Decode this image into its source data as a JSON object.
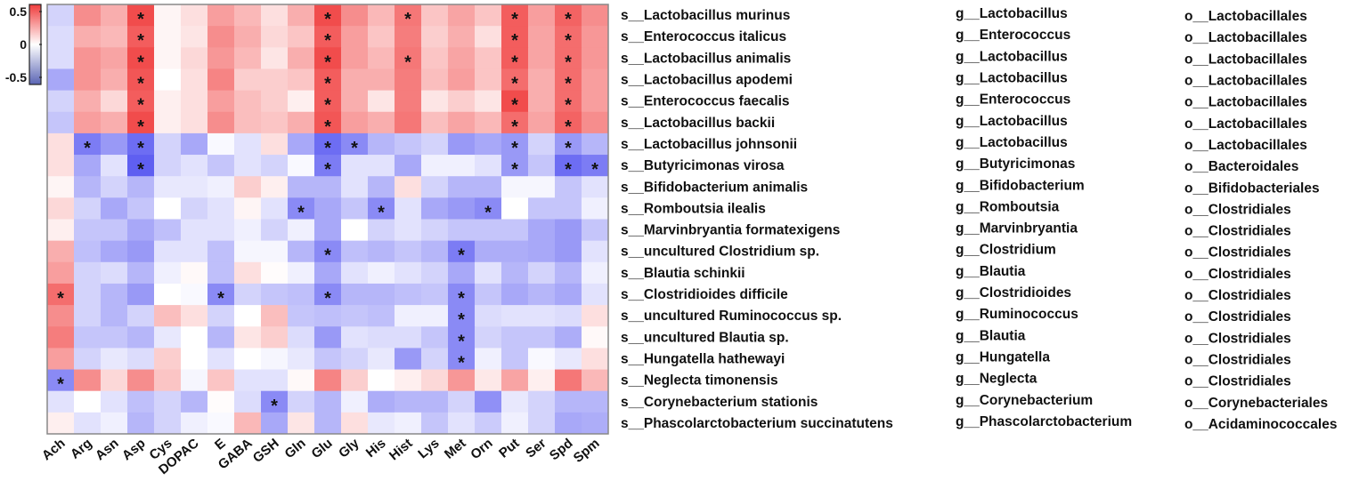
{
  "chart_data": {
    "type": "heatmap",
    "title": "",
    "columns": [
      "Ach",
      "Arg",
      "Asn",
      "Asp",
      "Cys",
      "DOPAC",
      "E",
      "GABA",
      "GSH",
      "Gln",
      "Glu",
      "Gly",
      "His",
      "Hist",
      "Lys",
      "Met",
      "Orn",
      "Put",
      "Ser",
      "Spd",
      "Spm"
    ],
    "rows": [
      {
        "species": "s__Lactobacillus murinus",
        "genus": "g__Lactobacillus",
        "order": "o__Lactobacillales"
      },
      {
        "species": "s__Enterococcus italicus",
        "genus": "g__Enterococcus",
        "order": "o__Lactobacillales"
      },
      {
        "species": "s__Lactobacillus animalis",
        "genus": "g__Lactobacillus",
        "order": "o__Lactobacillales"
      },
      {
        "species": "s__Lactobacillus apodemi",
        "genus": "g__Lactobacillus",
        "order": "o__Lactobacillales"
      },
      {
        "species": "s__Enterococcus faecalis",
        "genus": "g__Enterococcus",
        "order": "o__Lactobacillales"
      },
      {
        "species": "s__Lactobacillus backii",
        "genus": "g__Lactobacillus",
        "order": "o__Lactobacillales"
      },
      {
        "species": "s__Lactobacillus johnsonii",
        "genus": "g__Lactobacillus",
        "order": "o__Lactobacillales"
      },
      {
        "species": "s__Butyricimonas virosa",
        "genus": "g__Butyricimonas",
        "order": "o__Bacteroidales"
      },
      {
        "species": "s__Bifidobacterium animalis",
        "genus": "g__Bifidobacterium",
        "order": "o__Bifidobacteriales"
      },
      {
        "species": "s__Romboutsia ilealis",
        "genus": "g__Romboutsia",
        "order": "o__Clostridiales"
      },
      {
        "species": "s__Marvinbryantia formatexigens",
        "genus": "g__Marvinbryantia",
        "order": "o__Clostridiales"
      },
      {
        "species": "s__uncultured Clostridium sp.",
        "genus": "g__Clostridium",
        "order": "o__Clostridiales"
      },
      {
        "species": "s__Blautia schinkii",
        "genus": "g__Blautia",
        "order": "o__Clostridiales"
      },
      {
        "species": "s__Clostridioides difficile",
        "genus": "g__Clostridioides",
        "order": "o__Clostridiales"
      },
      {
        "species": "s__uncultured Ruminococcus sp.",
        "genus": "g__Ruminococcus",
        "order": "o__Clostridiales"
      },
      {
        "species": "s__uncultured Blautia sp.",
        "genus": "g__Blautia",
        "order": "o__Clostridiales"
      },
      {
        "species": "s__Hungatella hathewayi",
        "genus": "g__Hungatella",
        "order": "o__Clostridiales"
      },
      {
        "species": "s__Neglecta timonensis",
        "genus": "g__Neglecta",
        "order": "o__Clostridiales"
      },
      {
        "species": "s__Corynebacterium stationis",
        "genus": "g__Corynebacterium",
        "order": "o__Corynebacteriales"
      },
      {
        "species": "s__Phascolarctobacterium succinatutens",
        "genus": "g__Phascolarctobacterium",
        "order": "o__Acidaminococcales"
      }
    ],
    "values": [
      [
        -0.15,
        0.35,
        0.25,
        0.55,
        0.03,
        0.1,
        0.3,
        0.22,
        0.1,
        0.25,
        0.55,
        0.35,
        0.22,
        0.42,
        0.18,
        0.28,
        0.18,
        0.5,
        0.3,
        0.48,
        0.35
      ],
      [
        -0.12,
        0.25,
        0.22,
        0.5,
        0.03,
        0.08,
        0.35,
        0.25,
        0.12,
        0.18,
        0.5,
        0.3,
        0.18,
        0.4,
        0.15,
        0.25,
        0.1,
        0.5,
        0.28,
        0.45,
        0.32
      ],
      [
        -0.12,
        0.33,
        0.28,
        0.55,
        0.03,
        0.12,
        0.32,
        0.22,
        0.08,
        0.25,
        0.55,
        0.3,
        0.22,
        0.42,
        0.18,
        0.28,
        0.18,
        0.5,
        0.28,
        0.45,
        0.32
      ],
      [
        -0.3,
        0.33,
        0.25,
        0.52,
        0,
        0.1,
        0.38,
        0.15,
        0.15,
        0.18,
        0.5,
        0.25,
        0.25,
        0.4,
        0.2,
        0.3,
        0.18,
        0.45,
        0.25,
        0.45,
        0.3
      ],
      [
        -0.15,
        0.25,
        0.12,
        0.5,
        0.05,
        0.1,
        0.3,
        0.2,
        0.15,
        0.05,
        0.5,
        0.25,
        0.08,
        0.4,
        0.08,
        0.15,
        0.08,
        0.55,
        0.25,
        0.45,
        0.3
      ],
      [
        -0.2,
        0.3,
        0.25,
        0.55,
        0.05,
        0.1,
        0.35,
        0.2,
        0.18,
        0.25,
        0.52,
        0.3,
        0.25,
        0.42,
        0.2,
        0.28,
        0.22,
        0.45,
        0.28,
        0.48,
        0.35
      ],
      [
        0.1,
        -0.45,
        -0.35,
        -0.5,
        -0.15,
        -0.3,
        -0.02,
        -0.1,
        0.1,
        -0.3,
        -0.5,
        -0.4,
        -0.25,
        -0.2,
        -0.15,
        -0.35,
        -0.3,
        -0.35,
        -0.15,
        -0.35,
        -0.25
      ],
      [
        0.1,
        -0.3,
        -0.1,
        -0.55,
        -0.15,
        -0.1,
        -0.2,
        -0.1,
        -0.15,
        -0.02,
        -0.45,
        -0.1,
        -0.1,
        -0.3,
        -0.05,
        -0.05,
        -0.1,
        -0.35,
        -0.2,
        -0.5,
        -0.45
      ],
      [
        0.03,
        -0.25,
        -0.15,
        -0.25,
        -0.08,
        -0.08,
        -0.05,
        0.15,
        0.05,
        -0.25,
        -0.25,
        -0.1,
        -0.25,
        0.1,
        -0.15,
        -0.25,
        -0.25,
        -0.03,
        -0.03,
        -0.2,
        -0.1
      ],
      [
        0.12,
        -0.15,
        -0.3,
        -0.2,
        0,
        -0.15,
        -0.1,
        0.03,
        -0.1,
        -0.4,
        -0.3,
        -0.2,
        -0.4,
        -0.1,
        -0.3,
        -0.35,
        -0.4,
        0,
        -0.2,
        -0.2,
        -0.05
      ],
      [
        0.05,
        -0.2,
        -0.2,
        -0.3,
        -0.22,
        -0.1,
        -0.1,
        -0.05,
        -0.15,
        -0.05,
        -0.3,
        0,
        -0.15,
        -0.1,
        -0.15,
        -0.2,
        -0.2,
        -0.2,
        -0.3,
        -0.35,
        -0.2
      ],
      [
        0.25,
        -0.22,
        -0.3,
        -0.35,
        -0.1,
        -0.1,
        -0.22,
        -0.03,
        -0.03,
        -0.25,
        -0.4,
        -0.22,
        -0.25,
        -0.2,
        -0.25,
        -0.45,
        -0.28,
        -0.28,
        -0.3,
        -0.35,
        -0.1
      ],
      [
        0.3,
        -0.15,
        -0.12,
        -0.25,
        -0.05,
        0.02,
        -0.22,
        0.1,
        0.01,
        -0.05,
        -0.3,
        -0.1,
        -0.05,
        -0.1,
        -0.15,
        -0.3,
        -0.1,
        -0.25,
        -0.15,
        -0.25,
        -0.05
      ],
      [
        0.45,
        -0.15,
        -0.25,
        -0.35,
        0,
        -0.02,
        -0.4,
        -0.15,
        -0.2,
        -0.22,
        -0.4,
        -0.25,
        -0.25,
        -0.22,
        -0.2,
        -0.4,
        -0.2,
        -0.3,
        -0.25,
        -0.3,
        -0.1
      ],
      [
        0.35,
        -0.15,
        -0.25,
        -0.15,
        0.2,
        0.1,
        -0.15,
        0,
        0.2,
        -0.2,
        -0.22,
        -0.2,
        -0.22,
        -0.05,
        -0.05,
        -0.4,
        -0.12,
        -0.1,
        -0.1,
        -0.12,
        0.1
      ],
      [
        0.4,
        -0.2,
        -0.2,
        -0.25,
        -0.08,
        0,
        -0.25,
        0.08,
        0.15,
        -0.12,
        -0.35,
        -0.1,
        -0.12,
        -0.12,
        -0.2,
        -0.4,
        -0.15,
        -0.2,
        -0.2,
        -0.28,
        0.02
      ],
      [
        0.3,
        -0.15,
        -0.08,
        -0.12,
        0.15,
        0,
        -0.1,
        0,
        -0.03,
        -0.08,
        -0.2,
        -0.15,
        -0.08,
        -0.35,
        -0.15,
        -0.4,
        -0.05,
        -0.2,
        -0.02,
        -0.08,
        0.1
      ],
      [
        -0.4,
        0.35,
        0.12,
        0.35,
        0.18,
        -0.03,
        0.18,
        -0.1,
        -0.1,
        0.02,
        0.38,
        0.15,
        0,
        0.05,
        0.12,
        0.32,
        0.07,
        0.28,
        0.05,
        0.42,
        0.22
      ],
      [
        -0.1,
        0,
        -0.1,
        -0.22,
        -0.15,
        -0.25,
        0.01,
        -0.12,
        -0.4,
        -0.15,
        -0.25,
        -0.05,
        -0.28,
        -0.25,
        -0.25,
        -0.15,
        -0.38,
        -0.08,
        -0.15,
        -0.25,
        -0.25
      ],
      [
        0.05,
        -0.1,
        -0.05,
        -0.25,
        -0.15,
        -0.05,
        -0.02,
        0.22,
        -0.3,
        0.08,
        -0.25,
        0.1,
        -0.08,
        -0.05,
        -0.2,
        -0.1,
        -0.18,
        -0.05,
        -0.15,
        -0.3,
        -0.28
      ]
    ],
    "significance": [
      [
        0,
        0,
        0,
        1,
        0,
        0,
        0,
        0,
        0,
        0,
        1,
        0,
        0,
        1,
        0,
        0,
        0,
        1,
        0,
        1,
        0
      ],
      [
        0,
        0,
        0,
        1,
        0,
        0,
        0,
        0,
        0,
        0,
        1,
        0,
        0,
        0,
        0,
        0,
        0,
        1,
        0,
        1,
        0
      ],
      [
        0,
        0,
        0,
        1,
        0,
        0,
        0,
        0,
        0,
        0,
        1,
        0,
        0,
        1,
        0,
        0,
        0,
        1,
        0,
        1,
        0
      ],
      [
        0,
        0,
        0,
        1,
        0,
        0,
        0,
        0,
        0,
        0,
        1,
        0,
        0,
        0,
        0,
        0,
        0,
        1,
        0,
        1,
        0
      ],
      [
        0,
        0,
        0,
        1,
        0,
        0,
        0,
        0,
        0,
        0,
        1,
        0,
        0,
        0,
        0,
        0,
        0,
        1,
        0,
        1,
        0
      ],
      [
        0,
        0,
        0,
        1,
        0,
        0,
        0,
        0,
        0,
        0,
        1,
        0,
        0,
        0,
        0,
        0,
        0,
        1,
        0,
        1,
        0
      ],
      [
        0,
        1,
        0,
        1,
        0,
        0,
        0,
        0,
        0,
        0,
        1,
        1,
        0,
        0,
        0,
        0,
        0,
        1,
        0,
        1,
        0
      ],
      [
        0,
        0,
        0,
        1,
        0,
        0,
        0,
        0,
        0,
        0,
        1,
        0,
        0,
        0,
        0,
        0,
        0,
        1,
        0,
        1,
        1
      ],
      [
        0,
        0,
        0,
        0,
        0,
        0,
        0,
        0,
        0,
        0,
        0,
        0,
        0,
        0,
        0,
        0,
        0,
        0,
        0,
        0,
        0
      ],
      [
        0,
        0,
        0,
        0,
        0,
        0,
        0,
        0,
        0,
        1,
        0,
        0,
        1,
        0,
        0,
        0,
        1,
        0,
        0,
        0,
        0
      ],
      [
        0,
        0,
        0,
        0,
        0,
        0,
        0,
        0,
        0,
        0,
        0,
        0,
        0,
        0,
        0,
        0,
        0,
        0,
        0,
        0,
        0
      ],
      [
        0,
        0,
        0,
        0,
        0,
        0,
        0,
        0,
        0,
        0,
        1,
        0,
        0,
        0,
        0,
        1,
        0,
        0,
        0,
        0,
        0
      ],
      [
        0,
        0,
        0,
        0,
        0,
        0,
        0,
        0,
        0,
        0,
        0,
        0,
        0,
        0,
        0,
        0,
        0,
        0,
        0,
        0,
        0
      ],
      [
        1,
        0,
        0,
        0,
        0,
        0,
        1,
        0,
        0,
        0,
        1,
        0,
        0,
        0,
        0,
        1,
        0,
        0,
        0,
        0,
        0
      ],
      [
        0,
        0,
        0,
        0,
        0,
        0,
        0,
        0,
        0,
        0,
        0,
        0,
        0,
        0,
        0,
        1,
        0,
        0,
        0,
        0,
        0
      ],
      [
        0,
        0,
        0,
        0,
        0,
        0,
        0,
        0,
        0,
        0,
        0,
        0,
        0,
        0,
        0,
        1,
        0,
        0,
        0,
        0,
        0
      ],
      [
        0,
        0,
        0,
        0,
        0,
        0,
        0,
        0,
        0,
        0,
        0,
        0,
        0,
        0,
        0,
        1,
        0,
        0,
        0,
        0,
        0
      ],
      [
        1,
        0,
        0,
        0,
        0,
        0,
        0,
        0,
        0,
        0,
        0,
        0,
        0,
        0,
        0,
        0,
        0,
        0,
        0,
        0,
        0
      ],
      [
        0,
        0,
        0,
        0,
        0,
        0,
        0,
        0,
        1,
        0,
        0,
        0,
        0,
        0,
        0,
        0,
        0,
        0,
        0,
        0,
        0
      ],
      [
        0,
        0,
        0,
        0,
        0,
        0,
        0,
        0,
        0,
        0,
        0,
        0,
        0,
        0,
        0,
        0,
        0,
        0,
        0,
        0,
        0
      ]
    ],
    "star_symbol": "*",
    "colorbar": {
      "range": [
        -0.6,
        0.6
      ],
      "ticks": [
        0.5,
        0,
        -0.5
      ],
      "tick_labels": [
        "0.5",
        "0",
        "-0.5"
      ],
      "low_color": "#5050f0",
      "mid_color": "#ffffff",
      "high_color": "#f03c3c"
    },
    "legend_placement": "top-left"
  }
}
